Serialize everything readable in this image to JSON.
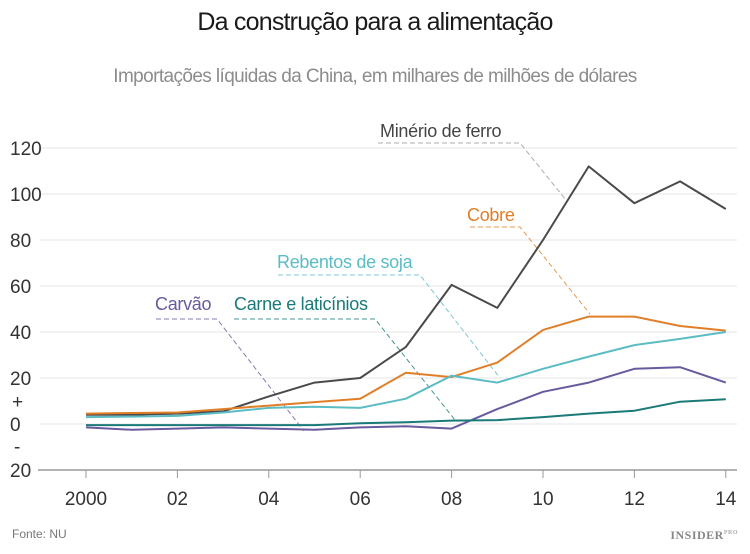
{
  "chart_data": {
    "type": "line",
    "title": "Da construção para a alimentação",
    "subtitle": "Importações líquidas da China, em milhares de milhões de dólares",
    "x": [
      2000,
      2001,
      2002,
      2003,
      2004,
      2005,
      2006,
      2007,
      2008,
      2009,
      2010,
      2011,
      2012,
      2013,
      2014
    ],
    "xtick_labels": [
      "2000",
      "02",
      "04",
      "06",
      "08",
      "10",
      "12",
      "14"
    ],
    "xticks": [
      2000,
      2002,
      2004,
      2006,
      2008,
      2010,
      2012,
      2014
    ],
    "yticks": [
      120,
      100,
      80,
      60,
      40,
      20,
      0,
      -20
    ],
    "ytick_labels": [
      "120",
      "100",
      "80",
      "60",
      "40",
      "20",
      "0",
      "20"
    ],
    "sign_labels": {
      "plus": "+",
      "minus": "-"
    },
    "ylim": [
      -20,
      120
    ],
    "xlim": [
      1999.1,
      2014.3
    ],
    "grid": true,
    "series": [
      {
        "name": "Minério de ferro",
        "color": "#4a4a4a",
        "values": [
          4,
          4,
          4.5,
          5.5,
          12,
          18,
          20,
          33.5,
          60.5,
          50.5,
          80,
          112,
          96,
          105.5,
          93.5
        ]
      },
      {
        "name": "Cobre",
        "color": "#e07f27",
        "values": [
          4.5,
          4.8,
          5,
          6.5,
          8,
          9.5,
          11,
          22.3,
          20.4,
          26.7,
          40.9,
          46.7,
          46.7,
          42.6,
          40.6
        ]
      },
      {
        "name": "Rebentos de soja",
        "color": "#5bbcc4",
        "values": [
          3,
          3.2,
          3.5,
          5,
          7,
          7.5,
          7,
          11,
          21,
          18,
          24,
          29.3,
          34.3,
          37,
          40
        ]
      },
      {
        "name": "Carvão",
        "color": "#6a5a9e",
        "values": [
          -1.5,
          -2.5,
          -2,
          -1.5,
          -2,
          -2.5,
          -1.5,
          -1,
          -2,
          6.5,
          14,
          18,
          24,
          24.7,
          18
        ]
      },
      {
        "name": "Carne e laticínios",
        "color": "#1a7a78",
        "values": [
          -0.5,
          -0.5,
          -0.5,
          -0.5,
          -0.5,
          -0.5,
          0.3,
          0.8,
          1.5,
          1.7,
          3,
          4.5,
          5.8,
          9.7,
          10.8
        ]
      }
    ]
  },
  "footer": {
    "source": "Fonte: NU",
    "logo": "INSIDER",
    "logo_sup": "PRO"
  }
}
